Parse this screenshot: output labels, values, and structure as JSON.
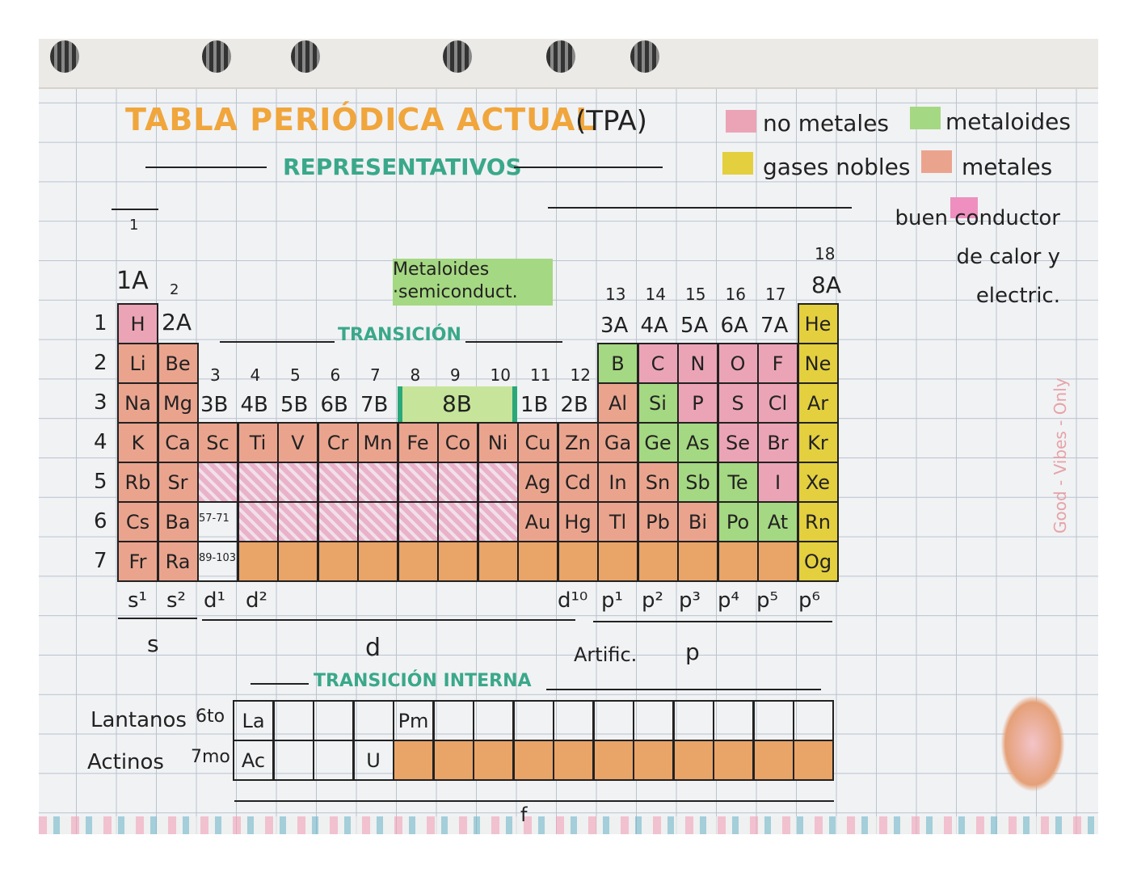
{
  "title": "TABLA PERIÓDICA ACTUAL",
  "title_abbr": "(TPA)",
  "legend": [
    {
      "label": "no metales",
      "color": "#eba4b6"
    },
    {
      "label": "metaloides",
      "color": "#a5d882"
    },
    {
      "label": "gases nobles",
      "color": "#e4cf3f"
    },
    {
      "label": "metales",
      "color": "#eaa48e"
    },
    {
      "label": "buen conductor de calor y electric.",
      "color": "#ee8fbf"
    }
  ],
  "headings": {
    "representativos": "REPRESENTATIVOS",
    "transicion": "TRANSICIÓN",
    "transicion_interna": "TRANSICIÓN INTERNA",
    "metaloides_note": "Metaloides ·semiconduct.",
    "artific": "Artific."
  },
  "group_labels": {
    "g1": "1",
    "g1a": "1A",
    "g2": "2",
    "g2a": "2A",
    "g13": "13",
    "g14": "14",
    "g15": "15",
    "g16": "16",
    "g17": "17",
    "g18": "18",
    "g8a": "8A",
    "a": [
      "3A",
      "4A",
      "5A",
      "6A",
      "7A"
    ],
    "nums_b": [
      "3",
      "4",
      "5",
      "6",
      "7",
      "8",
      "9",
      "10",
      "11",
      "12"
    ],
    "b": [
      "3B",
      "4B",
      "5B",
      "6B",
      "7B"
    ],
    "g8b": "8B",
    "g1b": "1B",
    "g2b": "2B"
  },
  "periods": [
    "1",
    "2",
    "3",
    "4",
    "5",
    "6",
    "7"
  ],
  "ranges": {
    "lanthanides": "57-71",
    "actinides": "89-103"
  },
  "elements": [
    {
      "s": "H",
      "g": 1,
      "p": 1,
      "c": "nonmetal"
    },
    {
      "s": "He",
      "g": 18,
      "p": 1,
      "c": "noble"
    },
    {
      "s": "Li",
      "g": 1,
      "p": 2,
      "c": "metal"
    },
    {
      "s": "Be",
      "g": 2,
      "p": 2,
      "c": "metal"
    },
    {
      "s": "B",
      "g": 13,
      "p": 2,
      "c": "metalloid"
    },
    {
      "s": "C",
      "g": 14,
      "p": 2,
      "c": "nonmetal"
    },
    {
      "s": "N",
      "g": 15,
      "p": 2,
      "c": "nonmetal"
    },
    {
      "s": "O",
      "g": 16,
      "p": 2,
      "c": "nonmetal"
    },
    {
      "s": "F",
      "g": 17,
      "p": 2,
      "c": "nonmetal"
    },
    {
      "s": "Ne",
      "g": 18,
      "p": 2,
      "c": "noble"
    },
    {
      "s": "Na",
      "g": 1,
      "p": 3,
      "c": "metal"
    },
    {
      "s": "Mg",
      "g": 2,
      "p": 3,
      "c": "metal"
    },
    {
      "s": "Al",
      "g": 13,
      "p": 3,
      "c": "metal"
    },
    {
      "s": "Si",
      "g": 14,
      "p": 3,
      "c": "metalloid"
    },
    {
      "s": "P",
      "g": 15,
      "p": 3,
      "c": "nonmetal"
    },
    {
      "s": "S",
      "g": 16,
      "p": 3,
      "c": "nonmetal"
    },
    {
      "s": "Cl",
      "g": 17,
      "p": 3,
      "c": "nonmetal"
    },
    {
      "s": "Ar",
      "g": 18,
      "p": 3,
      "c": "noble"
    },
    {
      "s": "K",
      "g": 1,
      "p": 4,
      "c": "metal"
    },
    {
      "s": "Ca",
      "g": 2,
      "p": 4,
      "c": "metal"
    },
    {
      "s": "Sc",
      "g": 3,
      "p": 4,
      "c": "metal"
    },
    {
      "s": "Ti",
      "g": 4,
      "p": 4,
      "c": "metal"
    },
    {
      "s": "V",
      "g": 5,
      "p": 4,
      "c": "metal"
    },
    {
      "s": "Cr",
      "g": 6,
      "p": 4,
      "c": "metal"
    },
    {
      "s": "Mn",
      "g": 7,
      "p": 4,
      "c": "metal"
    },
    {
      "s": "Fe",
      "g": 8,
      "p": 4,
      "c": "metal"
    },
    {
      "s": "Co",
      "g": 9,
      "p": 4,
      "c": "metal"
    },
    {
      "s": "Ni",
      "g": 10,
      "p": 4,
      "c": "metal"
    },
    {
      "s": "Cu",
      "g": 11,
      "p": 4,
      "c": "metal"
    },
    {
      "s": "Zn",
      "g": 12,
      "p": 4,
      "c": "metal"
    },
    {
      "s": "Ga",
      "g": 13,
      "p": 4,
      "c": "metal"
    },
    {
      "s": "Ge",
      "g": 14,
      "p": 4,
      "c": "metalloid"
    },
    {
      "s": "As",
      "g": 15,
      "p": 4,
      "c": "metalloid"
    },
    {
      "s": "Se",
      "g": 16,
      "p": 4,
      "c": "nonmetal"
    },
    {
      "s": "Br",
      "g": 17,
      "p": 4,
      "c": "nonmetal"
    },
    {
      "s": "Kr",
      "g": 18,
      "p": 4,
      "c": "noble"
    },
    {
      "s": "Rb",
      "g": 1,
      "p": 5,
      "c": "metal"
    },
    {
      "s": "Sr",
      "g": 2,
      "p": 5,
      "c": "metal"
    },
    {
      "s": "",
      "g": 3,
      "p": 5,
      "c": "conductor"
    },
    {
      "s": "",
      "g": 4,
      "p": 5,
      "c": "conductor"
    },
    {
      "s": "",
      "g": 5,
      "p": 5,
      "c": "conductor"
    },
    {
      "s": "",
      "g": 6,
      "p": 5,
      "c": "conductor"
    },
    {
      "s": "",
      "g": 7,
      "p": 5,
      "c": "conductor"
    },
    {
      "s": "",
      "g": 8,
      "p": 5,
      "c": "conductor"
    },
    {
      "s": "",
      "g": 9,
      "p": 5,
      "c": "conductor"
    },
    {
      "s": "",
      "g": 10,
      "p": 5,
      "c": "conductor"
    },
    {
      "s": "Ag",
      "g": 11,
      "p": 5,
      "c": "metal"
    },
    {
      "s": "Cd",
      "g": 12,
      "p": 5,
      "c": "metal"
    },
    {
      "s": "In",
      "g": 13,
      "p": 5,
      "c": "metal"
    },
    {
      "s": "Sn",
      "g": 14,
      "p": 5,
      "c": "metal"
    },
    {
      "s": "Sb",
      "g": 15,
      "p": 5,
      "c": "metalloid"
    },
    {
      "s": "Te",
      "g": 16,
      "p": 5,
      "c": "metalloid"
    },
    {
      "s": "I",
      "g": 17,
      "p": 5,
      "c": "nonmetal"
    },
    {
      "s": "Xe",
      "g": 18,
      "p": 5,
      "c": "noble"
    },
    {
      "s": "Cs",
      "g": 1,
      "p": 6,
      "c": "metal"
    },
    {
      "s": "Ba",
      "g": 2,
      "p": 6,
      "c": "metal"
    },
    {
      "s": "",
      "g": 3,
      "p": 6,
      "c": "empty"
    },
    {
      "s": "",
      "g": 4,
      "p": 6,
      "c": "conductor"
    },
    {
      "s": "",
      "g": 5,
      "p": 6,
      "c": "conductor"
    },
    {
      "s": "",
      "g": 6,
      "p": 6,
      "c": "conductor"
    },
    {
      "s": "",
      "g": 7,
      "p": 6,
      "c": "conductor"
    },
    {
      "s": "",
      "g": 8,
      "p": 6,
      "c": "conductor"
    },
    {
      "s": "",
      "g": 9,
      "p": 6,
      "c": "conductor"
    },
    {
      "s": "",
      "g": 10,
      "p": 6,
      "c": "conductor"
    },
    {
      "s": "Au",
      "g": 11,
      "p": 6,
      "c": "metal"
    },
    {
      "s": "Hg",
      "g": 12,
      "p": 6,
      "c": "metal"
    },
    {
      "s": "Tl",
      "g": 13,
      "p": 6,
      "c": "metal"
    },
    {
      "s": "Pb",
      "g": 14,
      "p": 6,
      "c": "metal"
    },
    {
      "s": "Bi",
      "g": 15,
      "p": 6,
      "c": "metal"
    },
    {
      "s": "Po",
      "g": 16,
      "p": 6,
      "c": "metalloid"
    },
    {
      "s": "At",
      "g": 17,
      "p": 6,
      "c": "metalloid"
    },
    {
      "s": "Rn",
      "g": 18,
      "p": 6,
      "c": "noble"
    },
    {
      "s": "Fr",
      "g": 1,
      "p": 7,
      "c": "metal"
    },
    {
      "s": "Ra",
      "g": 2,
      "p": 7,
      "c": "metal"
    },
    {
      "s": "",
      "g": 3,
      "p": 7,
      "c": "empty"
    },
    {
      "s": "",
      "g": 4,
      "p": 7,
      "c": "artificial"
    },
    {
      "s": "",
      "g": 5,
      "p": 7,
      "c": "artificial"
    },
    {
      "s": "",
      "g": 6,
      "p": 7,
      "c": "artificial"
    },
    {
      "s": "",
      "g": 7,
      "p": 7,
      "c": "artificial"
    },
    {
      "s": "",
      "g": 8,
      "p": 7,
      "c": "artificial"
    },
    {
      "s": "",
      "g": 9,
      "p": 7,
      "c": "artificial"
    },
    {
      "s": "",
      "g": 10,
      "p": 7,
      "c": "artificial"
    },
    {
      "s": "",
      "g": 11,
      "p": 7,
      "c": "artificial"
    },
    {
      "s": "",
      "g": 12,
      "p": 7,
      "c": "artificial"
    },
    {
      "s": "",
      "g": 13,
      "p": 7,
      "c": "artificial"
    },
    {
      "s": "",
      "g": 14,
      "p": 7,
      "c": "artificial"
    },
    {
      "s": "",
      "g": 15,
      "p": 7,
      "c": "artificial"
    },
    {
      "s": "",
      "g": 16,
      "p": 7,
      "c": "artificial"
    },
    {
      "s": "",
      "g": 17,
      "p": 7,
      "c": "artificial"
    },
    {
      "s": "Og",
      "g": 18,
      "p": 7,
      "c": "noble"
    }
  ],
  "inner": {
    "lantanos_label": "Lantanos",
    "lantanos_period": "6to",
    "actinos_label": "Actinos",
    "actinos_period": "7mo",
    "lantanos": [
      "La",
      "",
      "",
      "",
      "Pm",
      "",
      "",
      "",
      "",
      "",
      "",
      "",
      "",
      "",
      ""
    ],
    "actinos": [
      "Ac",
      "",
      "",
      "U",
      "*",
      "*",
      "*",
      "*",
      "*",
      "*",
      "*",
      "*",
      "*",
      "*",
      "*"
    ]
  },
  "blocks": {
    "config": [
      "s¹",
      "s²",
      "d¹",
      "d²",
      "d¹⁰",
      "p¹",
      "p²",
      "p³",
      "p⁴",
      "p⁵",
      "p⁶"
    ],
    "s": "s",
    "d": "d",
    "p": "p",
    "f": "f"
  },
  "side_text": "Good - Vibes - Only"
}
